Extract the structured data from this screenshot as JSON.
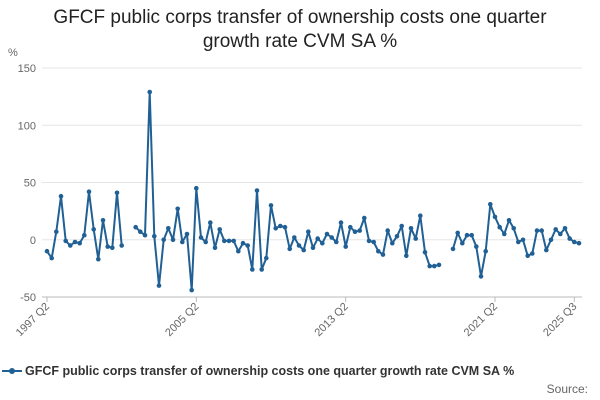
{
  "chart_data": {
    "type": "line",
    "title_line1": "GFCF public corps transfer of ownership costs one quarter",
    "title_line2": "growth rate CVM SA %",
    "ylabel": "%",
    "ylim": [
      -50,
      150
    ],
    "yticks": [
      150,
      100,
      50,
      0,
      -50
    ],
    "xticks": [
      "1997 Q2",
      "2005 Q2",
      "2013 Q2",
      "2021 Q2",
      "2025 Q3"
    ],
    "grid": true,
    "legend_placement": "bottom",
    "source_label": "Source:",
    "colors": {
      "series": "#206095",
      "grid": "#e5e5e5",
      "axis": "#bbbbbb"
    },
    "series": [
      {
        "name": "GFCF public corps transfer of ownership costs one quarter growth rate CVM SA %",
        "points": [
          [
            "1997 Q2",
            -10
          ],
          [
            "1997 Q3",
            -16
          ],
          [
            "1997 Q4",
            7
          ],
          [
            "1998 Q1",
            38
          ],
          [
            "1998 Q2",
            -1
          ],
          [
            "1998 Q3",
            -5
          ],
          [
            "1998 Q4",
            -2
          ],
          [
            "1999 Q1",
            -3
          ],
          [
            "1999 Q2",
            4
          ],
          [
            "1999 Q3",
            42
          ],
          [
            "1999 Q4",
            9
          ],
          [
            "2000 Q1",
            -17
          ],
          [
            "2000 Q2",
            17
          ],
          [
            "2000 Q3",
            -6
          ],
          [
            "2000 Q4",
            -7
          ],
          [
            "2001 Q1",
            41
          ],
          [
            "2001 Q2",
            -5
          ],
          [
            "2001 Q3",
            null
          ],
          [
            "2001 Q4",
            null
          ],
          [
            "2002 Q1",
            11
          ],
          [
            "2002 Q2",
            7
          ],
          [
            "2002 Q3",
            4
          ],
          [
            "2002 Q4",
            129
          ],
          [
            "2003 Q1",
            3
          ],
          [
            "2003 Q2",
            -40
          ],
          [
            "2003 Q3",
            0
          ],
          [
            "2003 Q4",
            10
          ],
          [
            "2004 Q1",
            0
          ],
          [
            "2004 Q2",
            27
          ],
          [
            "2004 Q3",
            -2
          ],
          [
            "2004 Q4",
            5
          ],
          [
            "2005 Q1",
            -44
          ],
          [
            "2005 Q2",
            45
          ],
          [
            "2005 Q3",
            2
          ],
          [
            "2005 Q4",
            -2
          ],
          [
            "2006 Q1",
            15
          ],
          [
            "2006 Q2",
            -7
          ],
          [
            "2006 Q3",
            9
          ],
          [
            "2006 Q4",
            -1
          ],
          [
            "2007 Q1",
            -1
          ],
          [
            "2007 Q2",
            -1
          ],
          [
            "2007 Q3",
            -10
          ],
          [
            "2007 Q4",
            -3
          ],
          [
            "2008 Q1",
            -5
          ],
          [
            "2008 Q2",
            -26
          ],
          [
            "2008 Q3",
            43
          ],
          [
            "2008 Q4",
            -26
          ],
          [
            "2009 Q1",
            -16
          ],
          [
            "2009 Q2",
            30
          ],
          [
            "2009 Q3",
            10
          ],
          [
            "2009 Q4",
            12
          ],
          [
            "2010 Q1",
            11
          ],
          [
            "2010 Q2",
            -8
          ],
          [
            "2010 Q3",
            2
          ],
          [
            "2010 Q4",
            -5
          ],
          [
            "2011 Q1",
            -9
          ],
          [
            "2011 Q2",
            7
          ],
          [
            "2011 Q3",
            -7
          ],
          [
            "2011 Q4",
            1
          ],
          [
            "2012 Q1",
            -3
          ],
          [
            "2012 Q2",
            5
          ],
          [
            "2012 Q3",
            2
          ],
          [
            "2012 Q4",
            -2
          ],
          [
            "2013 Q1",
            15
          ],
          [
            "2013 Q2",
            -6
          ],
          [
            "2013 Q3",
            11
          ],
          [
            "2013 Q4",
            7
          ],
          [
            "2014 Q1",
            8
          ],
          [
            "2014 Q2",
            19
          ],
          [
            "2014 Q3",
            -1
          ],
          [
            "2014 Q4",
            -2
          ],
          [
            "2015 Q1",
            -10
          ],
          [
            "2015 Q2",
            -13
          ],
          [
            "2015 Q3",
            8
          ],
          [
            "2015 Q4",
            -3
          ],
          [
            "2016 Q1",
            3
          ],
          [
            "2016 Q2",
            12
          ],
          [
            "2016 Q3",
            -14
          ],
          [
            "2016 Q4",
            10
          ],
          [
            "2017 Q1",
            1
          ],
          [
            "2017 Q2",
            21
          ],
          [
            "2017 Q3",
            -11
          ],
          [
            "2017 Q4",
            -23
          ],
          [
            "2018 Q1",
            -23
          ],
          [
            "2018 Q2",
            -22
          ],
          [
            "2018 Q3",
            null
          ],
          [
            "2018 Q4",
            null
          ],
          [
            "2019 Q1",
            -8
          ],
          [
            "2019 Q2",
            6
          ],
          [
            "2019 Q3",
            -3
          ],
          [
            "2019 Q4",
            4
          ],
          [
            "2020 Q1",
            4
          ],
          [
            "2020 Q2",
            -6
          ],
          [
            "2020 Q3",
            -32
          ],
          [
            "2020 Q4",
            -10
          ],
          [
            "2021 Q1",
            31
          ],
          [
            "2021 Q2",
            20
          ],
          [
            "2021 Q3",
            11
          ],
          [
            "2021 Q4",
            5
          ],
          [
            "2022 Q1",
            17
          ],
          [
            "2022 Q2",
            10
          ],
          [
            "2022 Q3",
            -2
          ],
          [
            "2022 Q4",
            0
          ],
          [
            "2023 Q1",
            -14
          ],
          [
            "2023 Q2",
            -12
          ],
          [
            "2023 Q3",
            8
          ],
          [
            "2023 Q4",
            8
          ],
          [
            "2024 Q1",
            -9
          ],
          [
            "2024 Q2",
            0
          ],
          [
            "2024 Q3",
            9
          ],
          [
            "2024 Q4",
            5
          ],
          [
            "2025 Q1",
            10
          ],
          [
            "2025 Q2",
            1
          ],
          [
            "2025 Q3",
            -2
          ],
          [
            "2025 Q4",
            -3
          ]
        ]
      }
    ]
  }
}
